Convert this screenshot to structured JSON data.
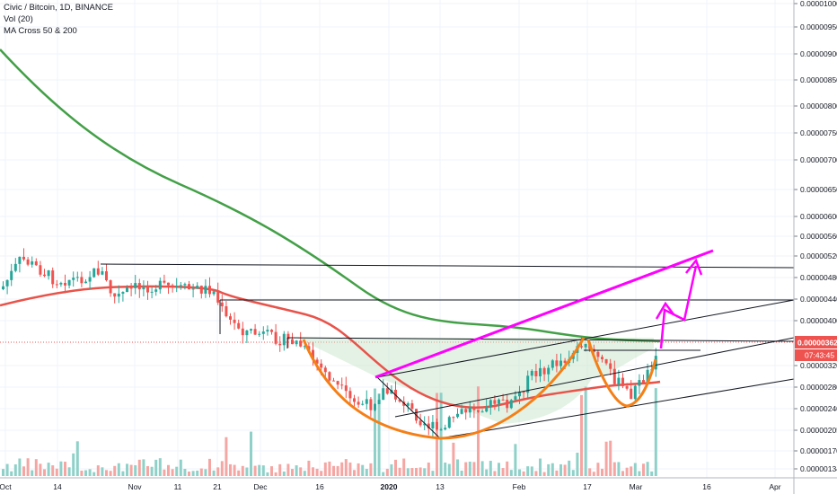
{
  "legend": {
    "symbol": "Civic / Bitcoin, 1D, BINANCE",
    "vol": "Vol (20)",
    "ma": "MA Cross 50 & 200"
  },
  "colors": {
    "up": "#26a69a",
    "down": "#ef5350",
    "ma50": "#e8534a",
    "ma200": "#43a047",
    "cup": "#f57f17",
    "trend": "#ff00ff",
    "price_label_bg": "#ef5350",
    "cup_fill": "#c8e6c9"
  },
  "price_label": {
    "price": "0.00000362",
    "countdown": "07:43:45"
  },
  "chart_data": {
    "type": "candlestick",
    "symbol": "Civic / Bitcoin",
    "interval": "1D",
    "exchange": "BINANCE",
    "y_ticks": [
      "0.00001000",
      "0.00000950",
      "0.00000900",
      "0.00000850",
      "0.00000800",
      "0.00000750",
      "0.00000700",
      "0.00000650",
      "0.00000600",
      "0.00000560",
      "0.00000520",
      "0.00000480",
      "0.00000440",
      "0.00000400",
      "0.00000320",
      "0.00000280",
      "0.00000240",
      "0.00000205",
      "0.00000170",
      "0.00000134"
    ],
    "x_ticks": [
      {
        "label": "Oct",
        "bold": false
      },
      {
        "label": "14",
        "bold": false
      },
      {
        "label": "Nov",
        "bold": false
      },
      {
        "label": "11",
        "bold": false
      },
      {
        "label": "21",
        "bold": false
      },
      {
        "label": "Dec",
        "bold": false
      },
      {
        "label": "16",
        "bold": false
      },
      {
        "label": "2020",
        "bold": true
      },
      {
        "label": "13",
        "bold": false
      },
      {
        "label": "Feb",
        "bold": false
      },
      {
        "label": "17",
        "bold": false
      },
      {
        "label": "Mar",
        "bold": false
      },
      {
        "label": "16",
        "bold": false
      },
      {
        "label": "Apr",
        "bold": false
      }
    ],
    "last_price": "0.00000362",
    "indicators": [
      "Vol (20)",
      "MA Cross 50 & 200"
    ]
  }
}
